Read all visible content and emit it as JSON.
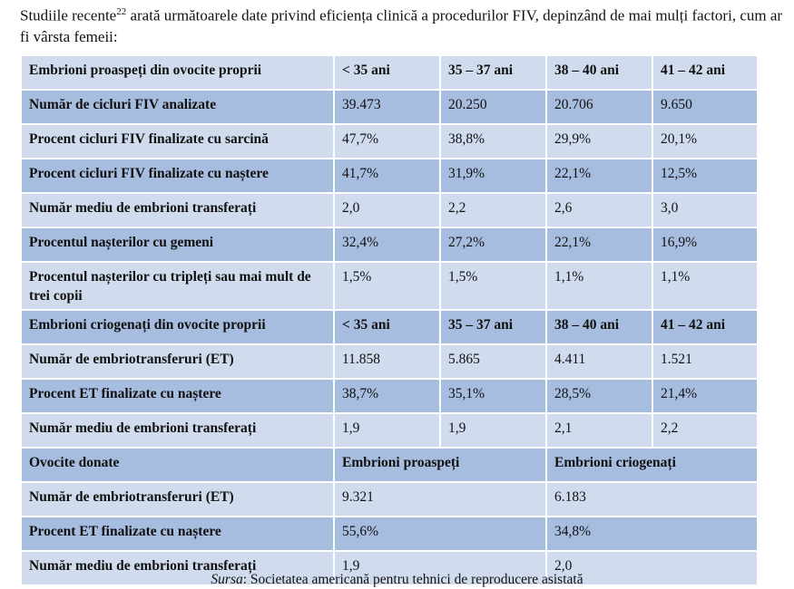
{
  "intro": {
    "text_before": "Studiile recente",
    "footnote": "22",
    "text_after": " arată următoarele date privind eficiența clinică a procedurilor FIV, depinzând de mai mulți factori, cum ar fi vârsta femeii:"
  },
  "table": {
    "fresh_header": [
      "Embrioni proaspeți din ovocite proprii",
      "< 35 ani",
      "35 – 37 ani",
      "38 – 40 ani",
      "41 – 42 ani"
    ],
    "fresh_rows": [
      [
        "Număr de cicluri FIV analizate",
        "39.473",
        "20.250",
        "20.706",
        "9.650"
      ],
      [
        "Procent cicluri FIV finalizate cu sarcină",
        "47,7%",
        "38,8%",
        "29,9%",
        "20,1%"
      ],
      [
        "Procent cicluri FIV finalizate cu naștere",
        "41,7%",
        "31,9%",
        "22,1%",
        "12,5%"
      ],
      [
        "Număr mediu de embrioni transferați",
        "2,0",
        "2,2",
        "2,6",
        "3,0"
      ],
      [
        "Procentul nașterilor cu gemeni",
        "32,4%",
        "27,2%",
        "22,1%",
        "16,9%"
      ],
      [
        "Procentul nașterilor cu tripleți sau mai mult de trei copii",
        "1,5%",
        "1,5%",
        "1,1%",
        "1,1%"
      ]
    ],
    "frozen_header": [
      "Embrioni criogenați din ovocite proprii",
      "< 35 ani",
      "35 – 37 ani",
      "38 – 40 ani",
      "41 – 42 ani"
    ],
    "frozen_rows": [
      [
        "Număr de embriotransferuri (ET)",
        "11.858",
        "5.865",
        "4.411",
        "1.521"
      ],
      [
        "Procent ET finalizate cu naștere",
        "38,7%",
        "35,1%",
        "28,5%",
        "21,4%"
      ],
      [
        "Număr mediu de embrioni transferați",
        "1,9",
        "1,9",
        "2,1",
        "2,2"
      ]
    ],
    "donor_header": [
      "Ovocite donate",
      "Embrioni proaspeți",
      "Embrioni criogenați"
    ],
    "donor_rows": [
      [
        "Număr de embriotransferuri (ET)",
        "9.321",
        "6.183"
      ],
      [
        "Procent ET finalizate cu naștere",
        "55,6%",
        "34,8%"
      ],
      [
        "Număr mediu de embrioni transferați",
        "1,9",
        "2,0"
      ]
    ]
  },
  "source": {
    "label": "Sursa",
    "text": ": Societatea americană pentru tehnici de reproducere asistată"
  },
  "colors": {
    "row_light": "#d0dcee",
    "row_dark": "#a7bddf"
  }
}
